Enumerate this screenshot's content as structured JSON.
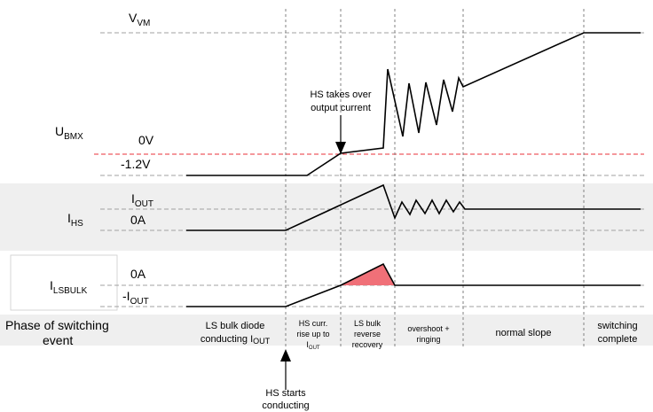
{
  "signals": {
    "ubmx": {
      "base": "U",
      "sub": "BMX"
    },
    "ihs": {
      "base": "I",
      "sub": "HS"
    },
    "ilsbulk": {
      "base": "I",
      "sub": "LSBULK"
    }
  },
  "levels": {
    "vvm": {
      "base": "V",
      "sub": "VM"
    },
    "zero_v": "0V",
    "neg_v": "-1.2V",
    "iout": {
      "base": "I",
      "sub": "OUT"
    },
    "zero_a_hs": "0A",
    "zero_a_ls": "0A",
    "neg_iout": {
      "base": "-I",
      "sub": "OUT"
    }
  },
  "annotations": {
    "hs_takes_over": [
      "HS takes over",
      "output current"
    ],
    "hs_starts": [
      "HS starts",
      "conducting"
    ]
  },
  "phase_title": [
    "Phase of switching",
    "event"
  ],
  "phases": [
    {
      "lines": [
        "LS bulk diode",
        "conducting I"
      ],
      "sub": "OUT"
    },
    {
      "lines": [
        "HS curr.",
        "rise up to",
        "I"
      ],
      "sub": "OUT"
    },
    {
      "lines": [
        "LS bulk",
        "reverse",
        "recovery"
      ]
    },
    {
      "lines": [
        "overshoot +",
        "ringing"
      ]
    },
    {
      "lines": [
        "normal slope"
      ]
    },
    {
      "lines": [
        "switching",
        "complete"
      ]
    }
  ],
  "colors": {
    "zero_line": "#e8303a",
    "recovery_fill": "#f07078",
    "band": "#efefef"
  }
}
